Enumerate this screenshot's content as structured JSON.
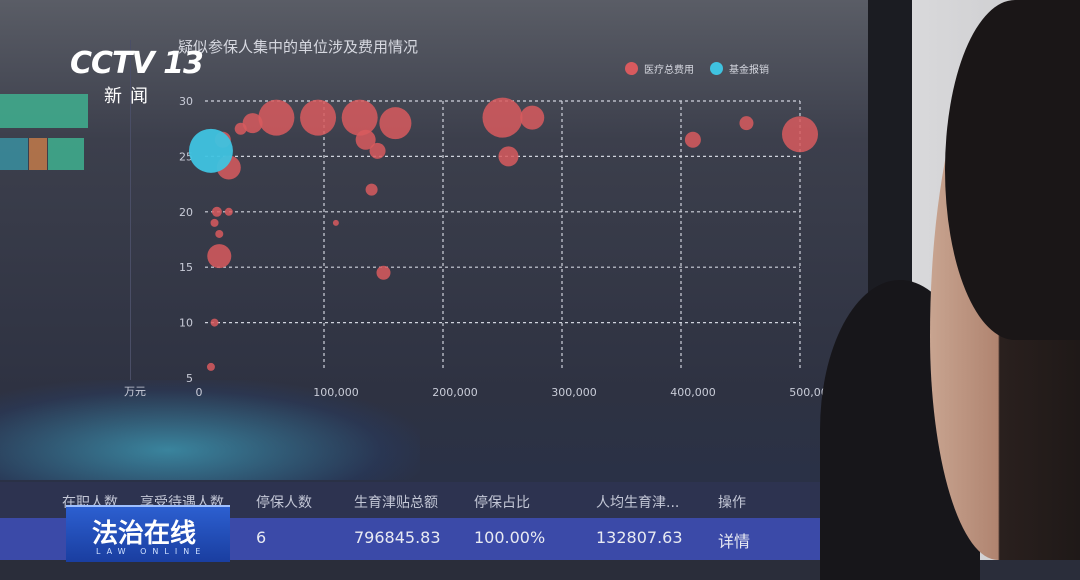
{
  "broadcast": {
    "channel_logo": "CCTV 13",
    "channel_sub": "新闻",
    "program_badge": "法治在线",
    "program_badge_sub": "LAW ONLINE"
  },
  "chart_data": {
    "type": "scatter",
    "title": "疑似参保人集中的单位涉及费用情况",
    "y_unit": "万元",
    "xlim": [
      0,
      500000
    ],
    "ylim": [
      5,
      30
    ],
    "x_ticks": [
      "0",
      "100,000",
      "200,000",
      "300,000",
      "400,000",
      "500,000"
    ],
    "x_tick_values": [
      0,
      100000,
      200000,
      300000,
      400000,
      500000
    ],
    "y_ticks": [
      "5",
      "10",
      "15",
      "20",
      "25",
      "30"
    ],
    "y_tick_values": [
      5,
      10,
      15,
      20,
      25,
      30
    ],
    "grid": true,
    "legend_position": "top-right",
    "series": [
      {
        "name": "医疗总费用",
        "color": "#d85a5e",
        "points": [
          [
            15000,
            26.5,
            8
          ],
          [
            20000,
            24,
            12
          ],
          [
            20000,
            20,
            4
          ],
          [
            10000,
            20,
            5
          ],
          [
            8000,
            19,
            4
          ],
          [
            12000,
            18,
            4
          ],
          [
            12000,
            16,
            12
          ],
          [
            8000,
            10,
            4
          ],
          [
            5000,
            6,
            4
          ],
          [
            30000,
            27.5,
            6
          ],
          [
            40000,
            28,
            10
          ],
          [
            60000,
            28.5,
            18
          ],
          [
            95000,
            28.5,
            18
          ],
          [
            130000,
            28.5,
            18
          ],
          [
            160000,
            28,
            16
          ],
          [
            135000,
            26.5,
            10
          ],
          [
            145000,
            25.5,
            8
          ],
          [
            140000,
            22,
            6
          ],
          [
            110000,
            19,
            3
          ],
          [
            150000,
            14.5,
            7
          ],
          [
            250000,
            28.5,
            20
          ],
          [
            275000,
            28.5,
            12
          ],
          [
            255000,
            25,
            10
          ],
          [
            410000,
            26.5,
            8
          ],
          [
            455000,
            28,
            7
          ],
          [
            500000,
            27,
            18
          ]
        ]
      },
      {
        "name": "基金报销",
        "color": "#3fc3e0",
        "points": [
          [
            5000,
            25.5,
            22
          ]
        ]
      }
    ]
  },
  "table": {
    "headers": [
      "在职人数",
      "享受待遇人数",
      "停保人数",
      "生育津贴总额",
      "停保占比",
      "人均生育津...",
      "操作"
    ],
    "row": [
      "",
      "",
      "6",
      "796845.83",
      "100.00%",
      "132807.63",
      "详情"
    ]
  }
}
